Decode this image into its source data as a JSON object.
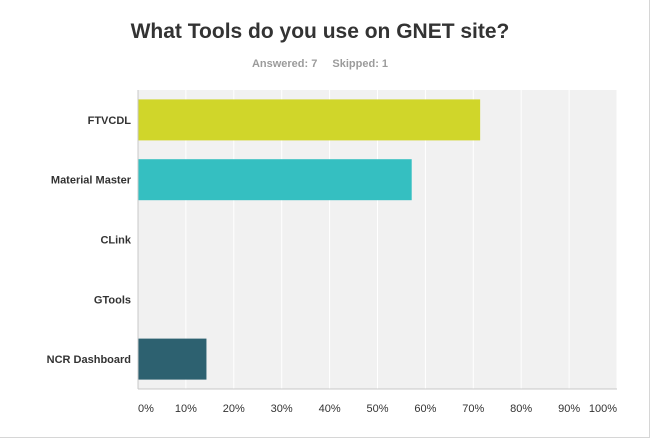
{
  "chart_data": {
    "type": "bar",
    "orientation": "horizontal",
    "title": "What Tools do you use on GNET site?",
    "answered_label": "Answered: 7",
    "skipped_label": "Skipped: 1",
    "categories": [
      "FTVCDL",
      "Material Master",
      "CLink",
      "GTools",
      "NCR Dashboard"
    ],
    "values": [
      71.43,
      57.14,
      0,
      0,
      14.29
    ],
    "colors": [
      "#d0d62a",
      "#35bfc1",
      "#6fa8c9",
      "#9cc16b",
      "#2d6170"
    ],
    "xlim": [
      0,
      100
    ],
    "x_ticks": [
      "0%",
      "10%",
      "20%",
      "30%",
      "40%",
      "50%",
      "60%",
      "70%",
      "80%",
      "90%",
      "100%"
    ],
    "grid": true,
    "plot_background": "#f1f1f1"
  }
}
